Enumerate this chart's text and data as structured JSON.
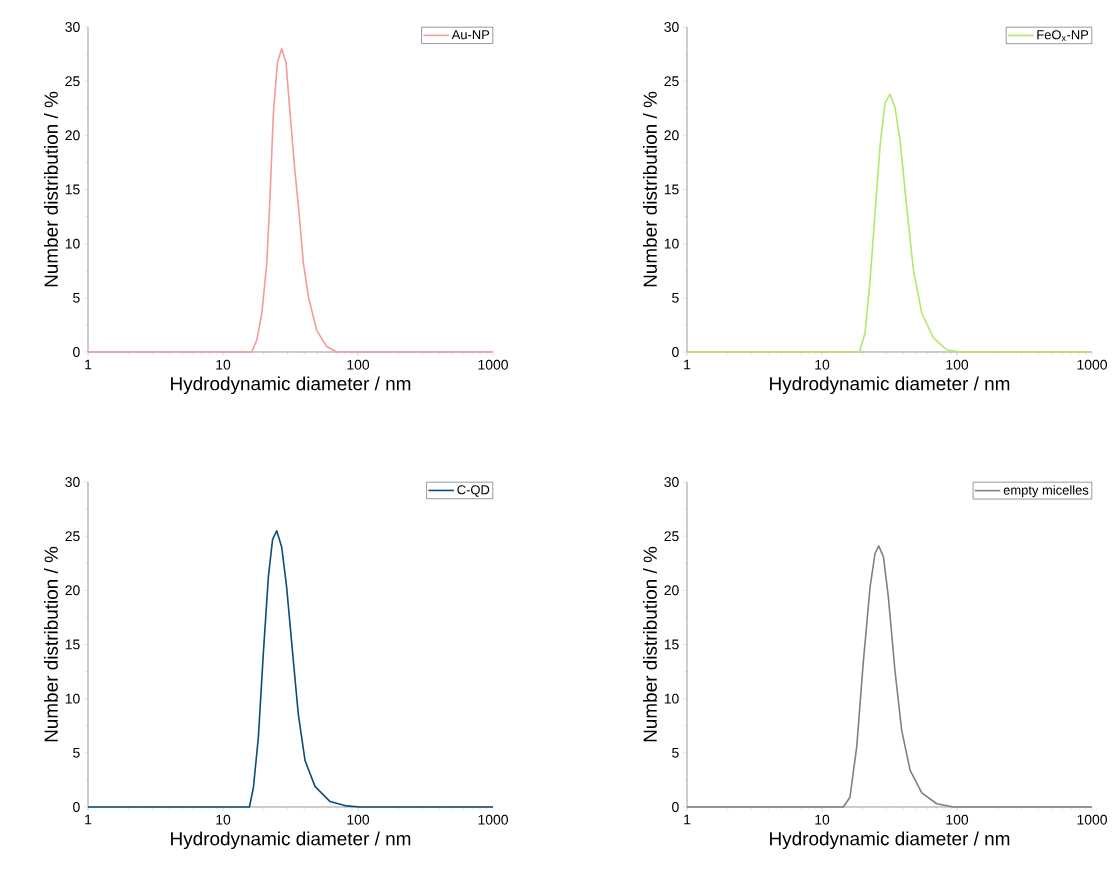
{
  "chart_data": [
    {
      "type": "line",
      "xlabel": "Hydrodynamic diameter / nm",
      "ylabel": "Number distribution / %",
      "log": "x",
      "legend": "top right",
      "xlim": [
        1,
        1000
      ],
      "ylim": [
        0,
        30
      ],
      "xticks": [
        1,
        10,
        100,
        1000
      ],
      "yticks": [
        0,
        5,
        10,
        15,
        20,
        25,
        30
      ],
      "series": [
        {
          "name": "Au-NP",
          "color": "#f79a9a",
          "x": [
            1,
            16.3,
            17.8,
            19.4,
            21.1,
            22.3,
            23.6,
            25.3,
            27.2,
            29.3,
            31.4,
            33.7,
            36.6,
            39.4,
            42.9,
            49.4,
            58.6,
            69.5,
            1000
          ],
          "values": [
            0,
            0,
            1.1,
            3.6,
            8.2,
            14.3,
            22.0,
            26.7,
            28.0,
            26.7,
            22.0,
            17.4,
            12.8,
            8.2,
            5.1,
            2.0,
            0.5,
            0,
            0
          ]
        }
      ]
    },
    {
      "type": "line",
      "xlabel": "Hydrodynamic diameter / nm",
      "ylabel": "Number distribution / %",
      "log": "x",
      "legend": "top right",
      "xlim": [
        1,
        1000
      ],
      "ylim": [
        0,
        30
      ],
      "xticks": [
        1,
        10,
        100,
        1000
      ],
      "yticks": [
        0,
        5,
        10,
        15,
        20,
        25,
        30
      ],
      "series": [
        {
          "name": "FeO$_{x}$-NP",
          "color": "#b3e86c",
          "x": [
            1,
            18.9,
            20.8,
            22.7,
            24.7,
            26.9,
            29.3,
            31.9,
            34.7,
            37.8,
            42.4,
            47.5,
            54.8,
            66.8,
            83.9,
            105,
            1000
          ],
          "values": [
            0,
            0,
            1.7,
            6.6,
            12.8,
            19.0,
            23.0,
            23.8,
            22.6,
            19.6,
            13.4,
            7.6,
            3.6,
            1.3,
            0.2,
            0,
            0
          ]
        }
      ]
    },
    {
      "type": "line",
      "xlabel": "Hydrodynamic diameter / nm",
      "ylabel": "Number distribution / %",
      "log": "x",
      "legend": "top right",
      "xlim": [
        1,
        1000
      ],
      "ylim": [
        0,
        30
      ],
      "xticks": [
        1,
        10,
        100,
        1000
      ],
      "yticks": [
        0,
        5,
        10,
        15,
        20,
        25,
        30
      ],
      "series": [
        {
          "name": "C-QD",
          "color": "#0e4c78",
          "x": [
            1,
            15.7,
            16.8,
            18.3,
            19.9,
            21.7,
            23.3,
            25.0,
            27.2,
            29.6,
            32.8,
            36.1,
            40.5,
            48.0,
            62.1,
            82.4,
            103,
            1000
          ],
          "values": [
            0,
            0,
            1.8,
            6.5,
            14.2,
            21.3,
            24.7,
            25.5,
            24.0,
            20.3,
            14.2,
            8.6,
            4.3,
            1.9,
            0.5,
            0.1,
            0,
            0
          ]
        }
      ]
    },
    {
      "type": "line",
      "xlabel": "Hydrodynamic diameter / nm",
      "ylabel": "Number distribution / %",
      "log": "x",
      "legend": "top right",
      "xlim": [
        1,
        1000
      ],
      "ylim": [
        0,
        30
      ],
      "xticks": [
        1,
        10,
        100,
        1000
      ],
      "yticks": [
        0,
        5,
        10,
        15,
        20,
        25,
        30
      ],
      "series": [
        {
          "name": "empty micelles",
          "color": "#808080",
          "x": [
            1,
            14.4,
            16.1,
            18.1,
            20.2,
            22.7,
            24.7,
            26.3,
            28.5,
            31.0,
            34.7,
            38.9,
            44.9,
            54.8,
            70.8,
            94,
            1000
          ],
          "values": [
            0,
            0,
            0.9,
            5.6,
            13.3,
            20.3,
            23.4,
            24.1,
            23.1,
            19.4,
            12.6,
            7.1,
            3.4,
            1.3,
            0.3,
            0,
            0
          ]
        }
      ]
    }
  ]
}
